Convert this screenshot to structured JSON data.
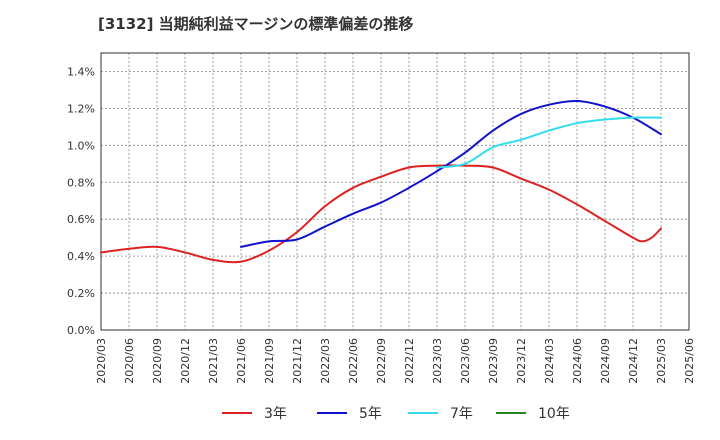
{
  "chart_data": {
    "type": "line",
    "title": "[3132]  当期純利益マージンの標準偏差の推移",
    "xlabel": "",
    "ylabel": "",
    "ylim": [
      0,
      1.5
    ],
    "y_ticks": [
      "0.0%",
      "0.2%",
      "0.4%",
      "0.6%",
      "0.8%",
      "1.0%",
      "1.2%",
      "1.4%"
    ],
    "y_tick_values": [
      0,
      0.2,
      0.4,
      0.6,
      0.8,
      1.0,
      1.2,
      1.4
    ],
    "x_ticks": [
      "2020/03",
      "2020/06",
      "2020/09",
      "2020/12",
      "2021/03",
      "2021/06",
      "2021/09",
      "2021/12",
      "2022/03",
      "2022/06",
      "2022/09",
      "2022/12",
      "2023/03",
      "2023/06",
      "2023/09",
      "2023/12",
      "2024/03",
      "2024/06",
      "2024/09",
      "2024/12",
      "2025/03",
      "2025/06"
    ],
    "grid": true,
    "legend_position": "bottom",
    "series": [
      {
        "name": "3年",
        "color": "#dd2222",
        "x": [
          "2020/03",
          "2020/06",
          "2020/09",
          "2020/12",
          "2021/03",
          "2021/06",
          "2021/09",
          "2021/12",
          "2022/03",
          "2022/06",
          "2022/09",
          "2022/12",
          "2023/03",
          "2023/06",
          "2023/09",
          "2023/12",
          "2024/03",
          "2024/06",
          "2024/09",
          "2024/12",
          "2025/01",
          "2025/02",
          "2025/03"
        ],
        "values": [
          0.42,
          0.44,
          0.45,
          0.42,
          0.38,
          0.37,
          0.43,
          0.53,
          0.67,
          0.77,
          0.83,
          0.88,
          0.89,
          0.89,
          0.88,
          0.82,
          0.76,
          0.68,
          0.59,
          0.5,
          0.48,
          0.5,
          0.55
        ]
      },
      {
        "name": "5年",
        "color": "#1111cc",
        "x": [
          "2021/06",
          "2021/09",
          "2021/12",
          "2022/03",
          "2022/06",
          "2022/09",
          "2022/12",
          "2023/03",
          "2023/06",
          "2023/09",
          "2023/12",
          "2024/03",
          "2024/06",
          "2024/09",
          "2024/12",
          "2025/03"
        ],
        "values": [
          0.45,
          0.48,
          0.49,
          0.56,
          0.63,
          0.69,
          0.77,
          0.86,
          0.96,
          1.08,
          1.17,
          1.22,
          1.24,
          1.21,
          1.15,
          1.06
        ]
      },
      {
        "name": "7年",
        "color": "#33ddee",
        "x": [
          "2023/03",
          "2023/06",
          "2023/09",
          "2023/12",
          "2024/03",
          "2024/06",
          "2024/09",
          "2024/12",
          "2025/03"
        ],
        "values": [
          0.88,
          0.9,
          0.99,
          1.03,
          1.08,
          1.12,
          1.14,
          1.15,
          1.15
        ]
      },
      {
        "name": "10年",
        "color": "#228822",
        "x": [],
        "values": []
      }
    ]
  }
}
